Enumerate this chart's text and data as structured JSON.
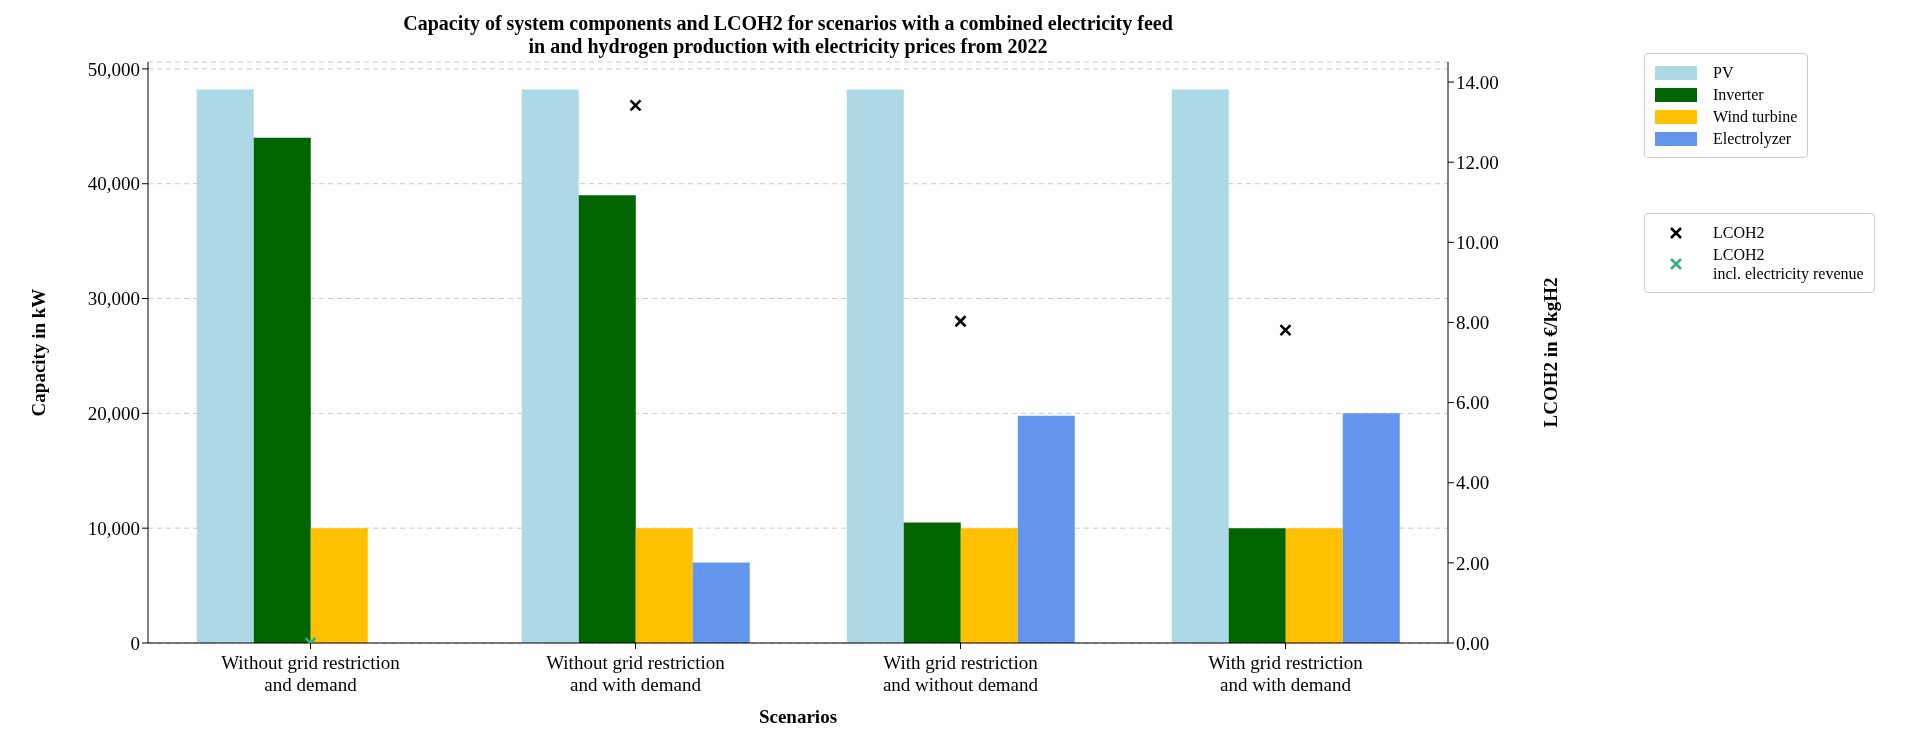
{
  "chart_data": {
    "type": "bar",
    "title": "Capacity of system components and LCOH2 for scenarios with a combined electricity feed in and hydrogen production with electricity prices from 2022",
    "xlabel": "Scenarios",
    "ylabel": "Capacity in kW",
    "y2label": "LCOH2 in €/kgH2",
    "categories": [
      "Without grid restriction\nand demand",
      "Without grid restriction\nand with demand",
      "With grid restriction\nand without demand",
      "With grid restriction\nand with demand"
    ],
    "series": [
      {
        "name": "PV",
        "color": "#add8e6",
        "values": [
          48200,
          48200,
          48200,
          48200
        ]
      },
      {
        "name": "Inverter",
        "color": "#006400",
        "values": [
          44000,
          39000,
          10500,
          10000
        ]
      },
      {
        "name": "Wind turbine",
        "color": "#ffc000",
        "values": [
          10000,
          10000,
          10000,
          10000
        ]
      },
      {
        "name": "Electrolyzer",
        "color": "#6495ed",
        "values": [
          null,
          7000,
          19800,
          20000
        ]
      },
      {
        "name": "LCOH2",
        "type": "scatter",
        "axis": "y2",
        "marker": "cross",
        "color": "#000000",
        "values": [
          null,
          13.42,
          8.03,
          7.81
        ]
      },
      {
        "name": "LCOH2\nincl. electricity revenue",
        "type": "scatter",
        "axis": "y2",
        "marker": "cross",
        "color": "#2ab07f",
        "values": [
          0,
          null,
          null,
          null
        ]
      }
    ],
    "ylim": [
      0,
      50600
    ],
    "yticks": [
      0,
      {
        "value": 10000,
        "label": "10,000"
      },
      {
        "value": 20000,
        "label": "20,000"
      },
      {
        "value": 30000,
        "label": "30,000"
      },
      {
        "value": 40000,
        "label": "40,000"
      },
      {
        "value": 50000,
        "label": "50,000"
      }
    ],
    "y2lim": [
      0,
      14.5
    ],
    "y2ticks": [
      {
        "value": 0,
        "label": "0.00"
      },
      {
        "value": 2,
        "label": "2.00"
      },
      {
        "value": 4,
        "label": "4.00"
      },
      {
        "value": 6,
        "label": "6.00"
      },
      {
        "value": 8,
        "label": "8.00"
      },
      {
        "value": 10,
        "label": "10.00"
      },
      {
        "value": 12,
        "label": "12.00"
      },
      {
        "value": 14,
        "label": "14.00"
      }
    ],
    "grid": "y",
    "legend": "right"
  }
}
